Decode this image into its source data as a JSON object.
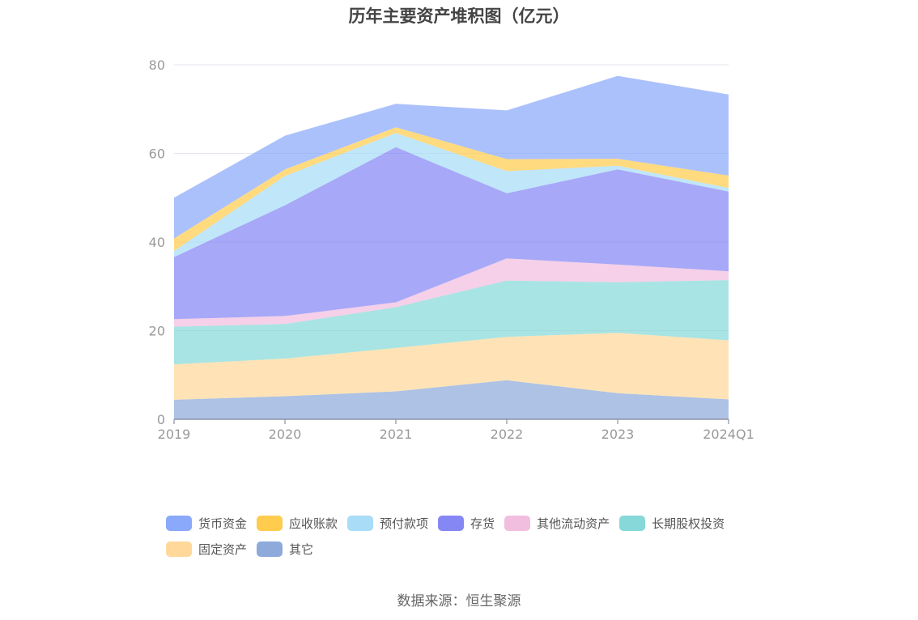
{
  "chart_data": {
    "type": "area",
    "stacked": true,
    "title": "历年主要资产堆积图（亿元）",
    "categories": [
      "2019",
      "2020",
      "2021",
      "2022",
      "2023",
      "2024Q1"
    ],
    "ylim": [
      0,
      80
    ],
    "yticks": [
      0,
      20,
      40,
      60,
      80
    ],
    "grid": true,
    "legend_position": "bottom",
    "series": [
      {
        "name": "其它",
        "color": "#8eaadb",
        "values": [
          4.4,
          5.2,
          6.3,
          8.8,
          5.9,
          4.5
        ]
      },
      {
        "name": "固定资产",
        "color": "#ffd89a",
        "values": [
          8.0,
          8.5,
          9.8,
          9.8,
          13.6,
          13.3
        ]
      },
      {
        "name": "长期股权投资",
        "color": "#86d9d8",
        "values": [
          8.5,
          7.8,
          9.2,
          12.7,
          11.4,
          13.6
        ]
      },
      {
        "name": "其他流动资产",
        "color": "#f1bedf",
        "values": [
          1.7,
          1.8,
          1.1,
          5.0,
          4.0,
          2.0
        ]
      },
      {
        "name": "存货",
        "color": "#8587f5",
        "values": [
          14.0,
          25.0,
          35.0,
          14.7,
          21.5,
          18.0
        ]
      },
      {
        "name": "预付款项",
        "color": "#a8dcf7",
        "values": [
          1.4,
          6.6,
          3.2,
          5.0,
          0.8,
          0.8
        ]
      },
      {
        "name": "应收账款",
        "color": "#ffcc4d",
        "values": [
          2.8,
          1.5,
          1.3,
          2.7,
          1.6,
          2.8
        ]
      },
      {
        "name": "货币资金",
        "color": "#8aa9fb",
        "values": [
          9.2,
          7.6,
          5.3,
          11.0,
          18.7,
          18.3
        ]
      }
    ]
  },
  "legend_order": [
    "货币资金",
    "应收账款",
    "预付款项",
    "存货",
    "其他流动资产",
    "长期股权投资",
    "固定资产",
    "其它"
  ],
  "source": "数据来源：恒生聚源"
}
